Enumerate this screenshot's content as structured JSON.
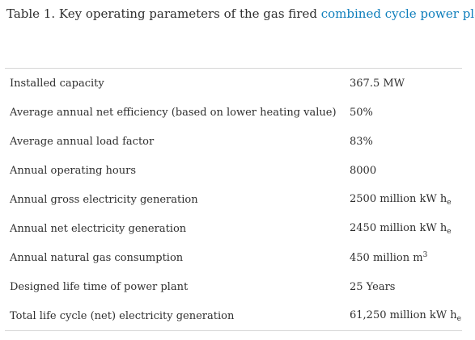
{
  "caption": {
    "prefix": "Table 1. Key operating parameters of the gas fired ",
    "link": "combined cycle power plant"
  },
  "rows": [
    {
      "parameter": "Installed capacity",
      "value": "367.5 MW",
      "sub": "",
      "sup": ""
    },
    {
      "parameter": "Average annual net efficiency (based on lower heating value)",
      "value": "50%",
      "sub": "",
      "sup": ""
    },
    {
      "parameter": "Average annual load factor",
      "value": "83%",
      "sub": "",
      "sup": ""
    },
    {
      "parameter": "Annual operating hours",
      "value": "8000",
      "sub": "",
      "sup": ""
    },
    {
      "parameter": "Annual gross electricity generation",
      "value": "2500 million kW h",
      "sub": "e",
      "sup": ""
    },
    {
      "parameter": "Annual net electricity generation",
      "value": "2450 million kW h",
      "sub": "e",
      "sup": ""
    },
    {
      "parameter": "Annual natural gas consumption",
      "value": "450 million m",
      "sub": "",
      "sup": "3"
    },
    {
      "parameter": "Designed life time of power plant",
      "value": "25 Years",
      "sub": "",
      "sup": ""
    },
    {
      "parameter": "Total life cycle (net) electricity generation",
      "value": "61,250 million kW h",
      "sub": "e",
      "sup": ""
    }
  ]
}
